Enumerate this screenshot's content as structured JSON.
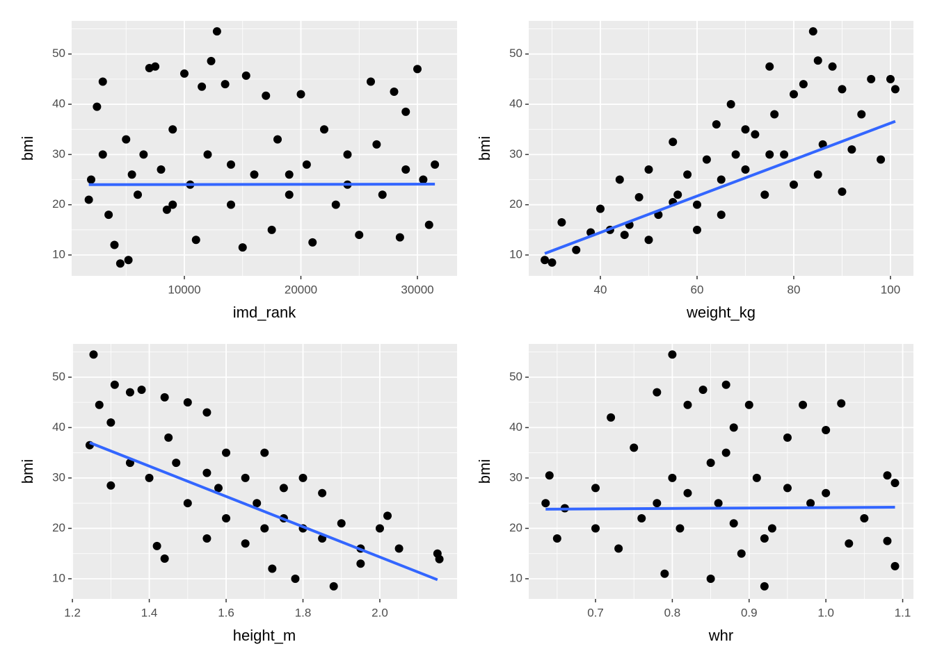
{
  "chart_data": [
    {
      "type": "scatter",
      "xlabel": "imd_rank",
      "ylabel": "bmi",
      "color": "#000000",
      "trend_color": "#3366ff",
      "xlim": [
        328,
        33403
      ],
      "ylim": [
        5.85,
        56.6
      ],
      "xticks": [
        10000,
        20000,
        30000
      ],
      "yticks": [
        10,
        20,
        30,
        40,
        50
      ],
      "x": [
        2000,
        2500,
        3000,
        3500,
        4000,
        4500,
        5200,
        5000,
        6000,
        6500,
        7000,
        7500,
        8000,
        8500,
        9000,
        10000,
        10500,
        11000,
        11500,
        12000,
        12300,
        12800,
        13500,
        14000,
        15000,
        15300,
        16000,
        17000,
        17500,
        18000,
        19000,
        20000,
        20500,
        21000,
        22000,
        23000,
        24000,
        25000,
        26000,
        26500,
        27000,
        28000,
        28500,
        29000,
        30000,
        30500,
        31000,
        31500,
        1800,
        3000,
        5500,
        9000,
        14000,
        19000,
        24000,
        29000
      ],
      "y": [
        25,
        39.5,
        44.5,
        18,
        12,
        8.3,
        9,
        33,
        22,
        30,
        47.2,
        47.5,
        27,
        19,
        35,
        46.1,
        24,
        13,
        43.5,
        30,
        48.6,
        54.5,
        44,
        20,
        11.5,
        45.7,
        26,
        41.7,
        15,
        33,
        22,
        42,
        28,
        12.5,
        35,
        20,
        30,
        14,
        44.5,
        32,
        22,
        42.5,
        13.5,
        38.5,
        47,
        25,
        16,
        28,
        21,
        30,
        26,
        20,
        28,
        26,
        24,
        27
      ],
      "trend": {
        "x": [
          1800,
          31500
        ],
        "y": [
          24,
          24.1
        ]
      }
    },
    {
      "type": "scatter",
      "xlabel": "weight_kg",
      "ylabel": "bmi",
      "color": "#000000",
      "trend_color": "#3366ff",
      "xlim": [
        25.18,
        104.75
      ],
      "ylim": [
        5.85,
        56.6
      ],
      "xticks": [
        40,
        60,
        80,
        100
      ],
      "yticks": [
        10,
        20,
        30,
        40,
        50
      ],
      "x": [
        28.5,
        30,
        32,
        35,
        38,
        40,
        42,
        44,
        46,
        48,
        50,
        52,
        55,
        56,
        58,
        60,
        62,
        64,
        65,
        67,
        68,
        70,
        72,
        74,
        75,
        76,
        78,
        80,
        82,
        84,
        85,
        86,
        88,
        90,
        92,
        94,
        96,
        98,
        100,
        101,
        90,
        80,
        70,
        60,
        50,
        65,
        55,
        75,
        45,
        85
      ],
      "y": [
        9,
        8.5,
        16.5,
        11,
        14.5,
        19.2,
        15,
        25,
        16,
        21.5,
        27,
        18,
        32.5,
        22,
        26,
        20,
        29,
        36,
        25,
        40,
        30,
        27,
        34,
        22,
        47.5,
        38,
        30,
        42,
        44,
        54.5,
        48.7,
        32,
        47.5,
        43,
        31,
        38,
        45,
        29,
        45,
        43,
        22.6,
        24,
        35,
        15,
        13,
        18,
        20.5,
        30,
        14,
        26
      ],
      "trend": {
        "x": [
          28.5,
          101
        ],
        "y": [
          10.3,
          36.6
        ]
      }
    },
    {
      "type": "scatter",
      "xlabel": "height_m",
      "ylabel": "bmi",
      "color": "#000000",
      "trend_color": "#3366ff",
      "xlim": [
        1.198,
        2.201
      ],
      "ylim": [
        6.0,
        56.6
      ],
      "xticks": [
        1.2,
        1.4,
        1.6,
        1.8,
        {
          "value": 2,
          "label": "2.0"
        }
      ],
      "yticks": [
        10,
        20,
        30,
        40,
        50
      ],
      "x": [
        1.245,
        1.255,
        1.27,
        1.3,
        1.31,
        1.35,
        1.38,
        1.42,
        1.44,
        1.44,
        1.47,
        1.5,
        1.5,
        1.55,
        1.55,
        1.6,
        1.6,
        1.65,
        1.65,
        1.7,
        1.7,
        1.72,
        1.75,
        1.78,
        1.8,
        1.8,
        1.85,
        1.88,
        1.9,
        1.95,
        2.0,
        2.02,
        2.05,
        2.15,
        2.155,
        1.4,
        1.45,
        1.35,
        1.58,
        1.68,
        1.75,
        1.85,
        1.95,
        1.3,
        1.55
      ],
      "y": [
        36.5,
        54.5,
        44.5,
        28.5,
        48.5,
        47,
        47.5,
        16.5,
        46,
        14,
        33,
        45,
        25,
        43,
        18,
        35,
        22,
        30,
        17,
        35,
        20,
        12,
        28,
        10,
        30,
        20,
        27,
        8.5,
        21,
        16,
        20,
        22.5,
        16,
        15,
        13.9,
        30,
        38,
        33,
        28,
        25,
        22,
        18,
        13,
        41,
        31
      ],
      "trend": {
        "x": [
          1.245,
          2.15
        ],
        "y": [
          37,
          9.8
        ]
      }
    },
    {
      "type": "scatter",
      "xlabel": "whr",
      "ylabel": "bmi",
      "color": "#000000",
      "trend_color": "#3366ff",
      "xlim": [
        0.613,
        1.114
      ],
      "ylim": [
        6.0,
        56.6
      ],
      "xticks": [
        0.7,
        0.8,
        0.9,
        {
          "value": 1,
          "label": "1.0"
        },
        1.1
      ],
      "yticks": [
        10,
        20,
        30,
        40,
        50
      ],
      "x": [
        0.635,
        0.64,
        0.65,
        0.66,
        0.7,
        0.72,
        0.73,
        0.75,
        0.76,
        0.78,
        0.79,
        0.8,
        0.8,
        0.81,
        0.82,
        0.84,
        0.85,
        0.86,
        0.87,
        0.88,
        0.89,
        0.9,
        0.91,
        0.92,
        0.93,
        0.95,
        0.97,
        0.98,
        1.0,
        1.02,
        1.03,
        1.05,
        1.08,
        1.09,
        1.09,
        1.08,
        0.85,
        0.82,
        0.88,
        0.95,
        0.78,
        0.92,
        0.7,
        1.0,
        0.87
      ],
      "y": [
        25,
        30.5,
        18,
        24,
        28,
        42,
        16,
        36,
        22,
        47,
        11,
        54.5,
        30,
        20,
        44.5,
        47.5,
        10,
        25,
        48.5,
        40,
        15,
        44.5,
        30,
        8.5,
        20,
        38,
        44.5,
        25,
        39.5,
        44.8,
        17,
        22,
        30.5,
        29,
        12.5,
        17.5,
        33,
        27,
        21,
        28,
        25,
        18,
        20,
        27,
        35
      ],
      "trend": {
        "x": [
          0.635,
          1.09
        ],
        "y": [
          23.8,
          24.2
        ]
      }
    }
  ]
}
